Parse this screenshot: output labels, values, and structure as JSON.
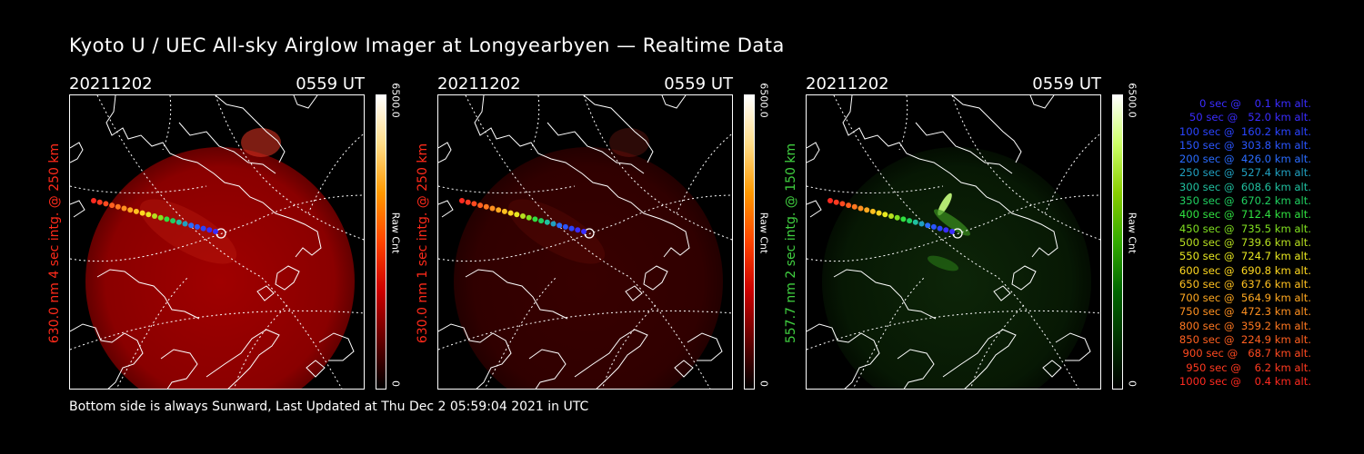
{
  "title": "Kyoto U / UEC All-sky Airglow Imager at Longyearbyen — Realtime Data",
  "footer": "Bottom side is always Sunward, Last Updated at Thu Dec  2 05:59:04 2021 in UTC",
  "colors": {
    "red_label": "#ff2a1a",
    "green_label": "#40d040"
  },
  "panels": [
    {
      "date": "20211202",
      "time": "0559 UT",
      "ylabel": "630.0 nm 4 sec intg. @ 250 km",
      "cbar_max": "6500.0",
      "cbar_unit": "Raw Cnt",
      "cbar_min": "0",
      "color": "red",
      "intensity": 1.0
    },
    {
      "date": "20211202",
      "time": "0559 UT",
      "ylabel": "630.0 nm 1 sec intg. @ 250 km",
      "cbar_max": "6500.0",
      "cbar_unit": "Raw Cnt",
      "cbar_min": "0",
      "color": "red",
      "intensity": 0.35
    },
    {
      "date": "20211202",
      "time": "0559 UT",
      "ylabel": "557.7 nm 2 sec intg. @ 150 km",
      "cbar_max": "6500.0",
      "cbar_unit": "Raw Cnt",
      "cbar_min": "0",
      "color": "green",
      "intensity": 0.5
    }
  ],
  "legend": [
    {
      "text": "   0 sec @    0.1 km alt.",
      "color": "#3a2cff"
    },
    {
      "text": "  50 sec @   52.0 km alt.",
      "color": "#3a2cff"
    },
    {
      "text": " 100 sec @  160.2 km alt.",
      "color": "#2a44ff"
    },
    {
      "text": " 150 sec @  303.8 km alt.",
      "color": "#2a56ff"
    },
    {
      "text": " 200 sec @  426.0 km alt.",
      "color": "#2a6cff"
    },
    {
      "text": " 250 sec @  527.4 km alt.",
      "color": "#20a0c0"
    },
    {
      "text": " 300 sec @  608.6 km alt.",
      "color": "#20c0a0"
    },
    {
      "text": " 350 sec @  670.2 km alt.",
      "color": "#20d060"
    },
    {
      "text": " 400 sec @  712.4 km alt.",
      "color": "#30e040"
    },
    {
      "text": " 450 sec @  735.5 km alt.",
      "color": "#80e020"
    },
    {
      "text": " 500 sec @  739.6 km alt.",
      "color": "#b8e020"
    },
    {
      "text": " 550 sec @  724.7 km alt.",
      "color": "#e8e820"
    },
    {
      "text": " 600 sec @  690.8 km alt.",
      "color": "#ffd820"
    },
    {
      "text": " 650 sec @  637.6 km alt.",
      "color": "#ffc020"
    },
    {
      "text": " 700 sec @  564.9 km alt.",
      "color": "#ffa820"
    },
    {
      "text": " 750 sec @  472.3 km alt.",
      "color": "#ff9020"
    },
    {
      "text": " 800 sec @  359.2 km alt.",
      "color": "#ff7820"
    },
    {
      "text": " 850 sec @  224.9 km alt.",
      "color": "#ff6020"
    },
    {
      "text": " 900 sec @   68.7 km alt.",
      "color": "#ff4a20"
    },
    {
      "text": " 950 sec @    6.2 km alt.",
      "color": "#ff3a20"
    },
    {
      "text": "1000 sec @    0.4 km alt.",
      "color": "#ff2a20"
    }
  ]
}
